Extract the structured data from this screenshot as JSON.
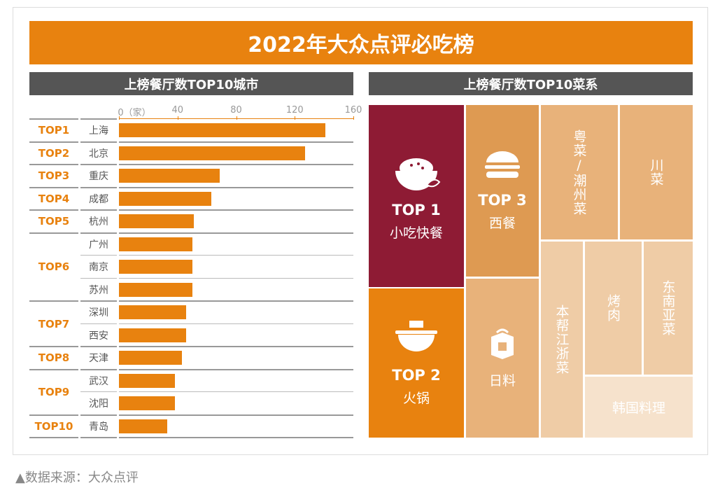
{
  "title": "2022年大众点评必吃榜",
  "left_header": "上榜餐厅数TOP10城市",
  "right_header": "上榜餐厅数TOP10菜系",
  "footer": "▲数据来源：大众点评",
  "colors": {
    "accent": "#E8820F",
    "header": "#555555",
    "top1": "#8E1B34",
    "top3": "#DE9A52",
    "tier2": "#E8B27A",
    "tier3": "#EFCCA6",
    "tier4": "#F6E2CC"
  },
  "chart_data": [
    {
      "type": "bar",
      "orientation": "horizontal",
      "xlim": [
        0,
        160
      ],
      "x_unit": "（家）",
      "ticks": [
        "0（家）",
        "40",
        "80",
        "120",
        "160"
      ],
      "categories": [
        "上海",
        "北京",
        "重庆",
        "成都",
        "杭州",
        "广州",
        "南京",
        "苏州",
        "深圳",
        "西安",
        "天津",
        "武汉",
        "沈阳",
        "青岛"
      ],
      "ranks": [
        "TOP1",
        "TOP2",
        "TOP3",
        "TOP4",
        "TOP5",
        "TOP6",
        "TOP6",
        "TOP6",
        "TOP7",
        "TOP7",
        "TOP8",
        "TOP9",
        "TOP9",
        "TOP10"
      ],
      "values": [
        141,
        127,
        69,
        63,
        51,
        50,
        50,
        50,
        46,
        46,
        43,
        38,
        38,
        33
      ]
    },
    {
      "type": "treemap",
      "items": [
        {
          "rank": "TOP 1",
          "name": "小吃快餐",
          "icon": "rice-bowl-icon"
        },
        {
          "rank": "TOP 2",
          "name": "火锅",
          "icon": "hotpot-icon"
        },
        {
          "rank": "TOP 3",
          "name": "西餐",
          "icon": "burger-icon"
        },
        {
          "name": "日料",
          "icon": "sushi-icon"
        },
        {
          "name": "粤菜/潮州菜"
        },
        {
          "name": "川菜"
        },
        {
          "name": "本帮江浙菜"
        },
        {
          "name": "烤肉"
        },
        {
          "name": "东南亚菜"
        },
        {
          "name": "韩国料理"
        }
      ]
    }
  ]
}
